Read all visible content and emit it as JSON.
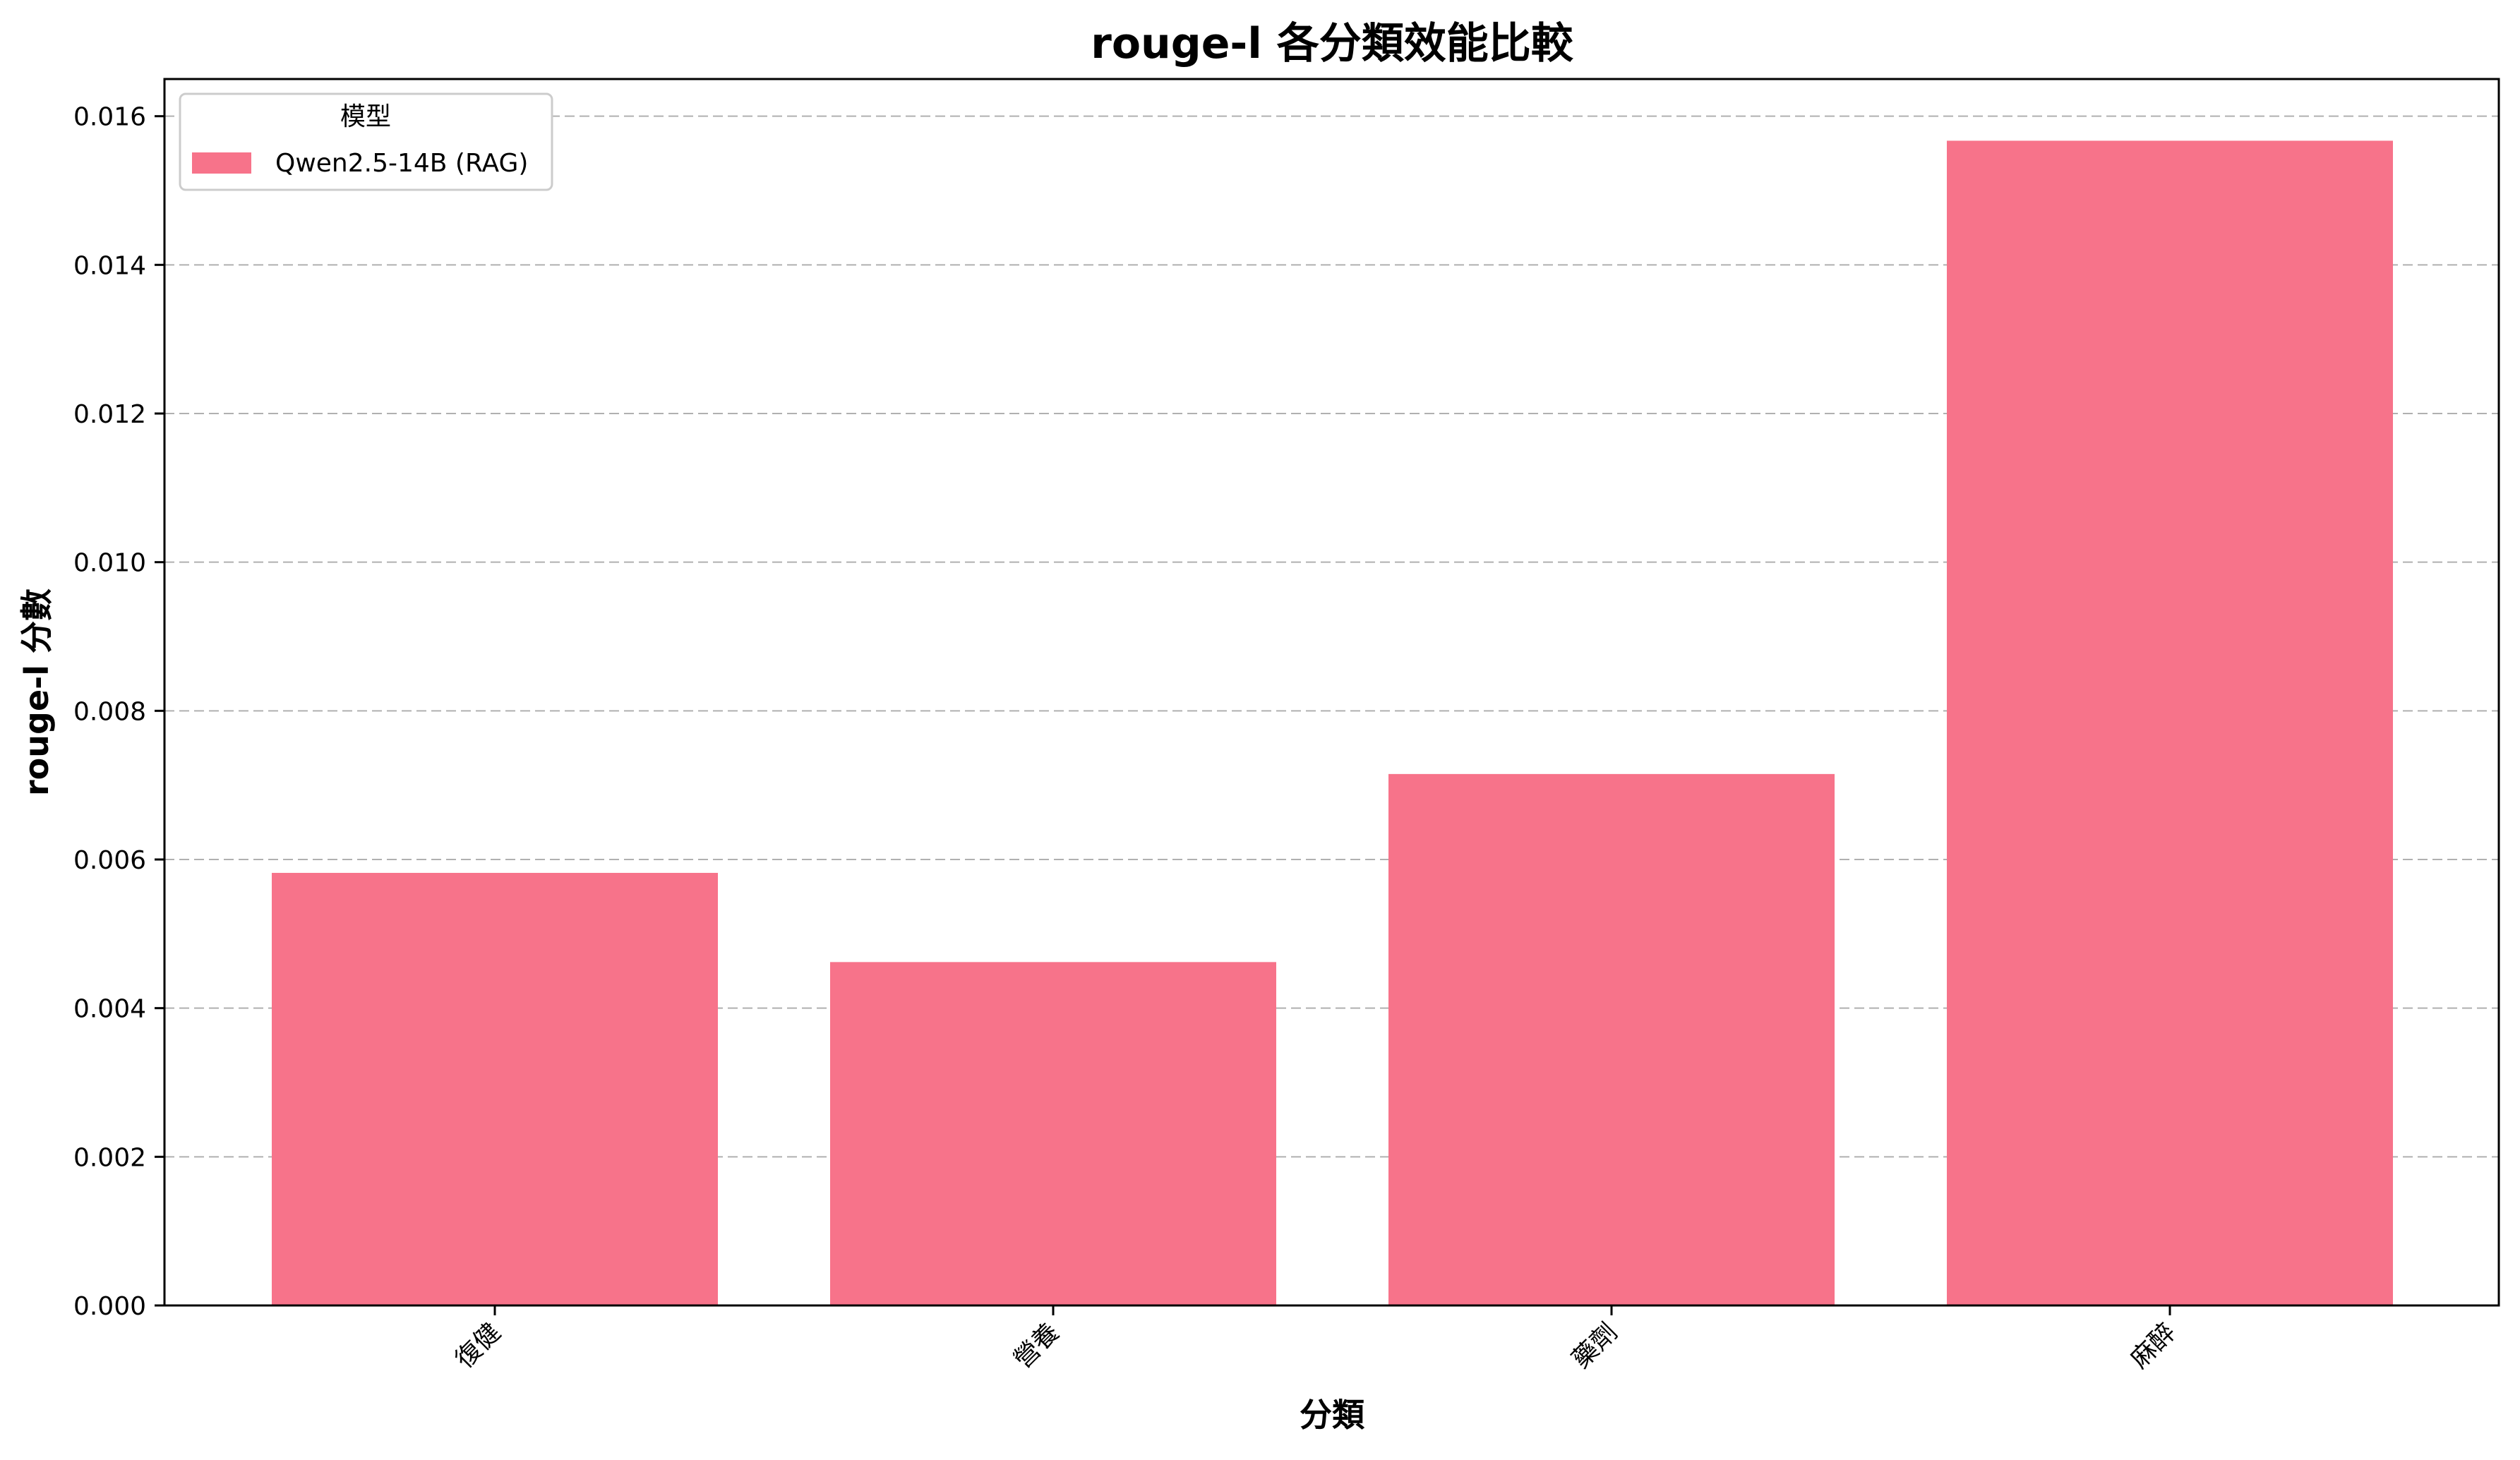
{
  "chart_data": {
    "type": "bar",
    "title": "rouge-l 各分類效能比較",
    "xlabel": "分類",
    "ylabel": "rouge-l 分數",
    "categories": [
      "復健",
      "營養",
      "藥劑",
      "麻醉"
    ],
    "series": [
      {
        "name": "Qwen2.5-14B (RAG)",
        "values": [
          0.00582,
          0.00462,
          0.00715,
          0.01567
        ],
        "color": "#f7738a"
      }
    ],
    "ylim": [
      0,
      0.0165
    ],
    "yticks": [
      0.0,
      0.002,
      0.004,
      0.006,
      0.008,
      0.01,
      0.012,
      0.014,
      0.016
    ],
    "ytick_labels": [
      "0.000",
      "0.002",
      "0.004",
      "0.006",
      "0.008",
      "0.010",
      "0.012",
      "0.014",
      "0.016"
    ],
    "grid": {
      "axis": "y",
      "style": "dashed",
      "color": "#b0b0b0"
    },
    "legend": {
      "title": "模型",
      "placement": "top-left"
    }
  }
}
